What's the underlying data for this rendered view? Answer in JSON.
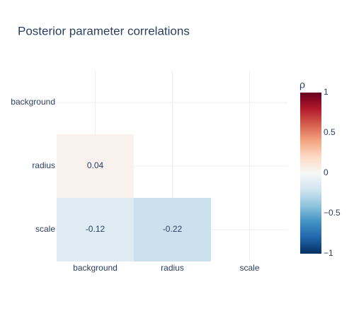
{
  "chart_data": {
    "type": "heatmap",
    "title": "Posterior parameter correlations",
    "x": [
      "background",
      "radius",
      "scale"
    ],
    "y": [
      "background",
      "radius",
      "scale"
    ],
    "z": [
      [
        null,
        null,
        null
      ],
      [
        0.04,
        null,
        null
      ],
      [
        -0.12,
        -0.22,
        null
      ]
    ],
    "colorbar_title": "ρ",
    "zlim": [
      -1,
      1
    ],
    "zticks": [
      1,
      0.5,
      0,
      {
        "value": -0.5,
        "label": "−0.5"
      },
      {
        "value": -1,
        "label": "−1"
      }
    ],
    "colorscale": [
      "#053061",
      "#2166ac",
      "#4393c3",
      "#92c5de",
      "#d1e5f0",
      "#f7f7f7",
      "#fddbc7",
      "#f4a582",
      "#d6604d",
      "#b2182b",
      "#67001f"
    ],
    "grid": true
  }
}
